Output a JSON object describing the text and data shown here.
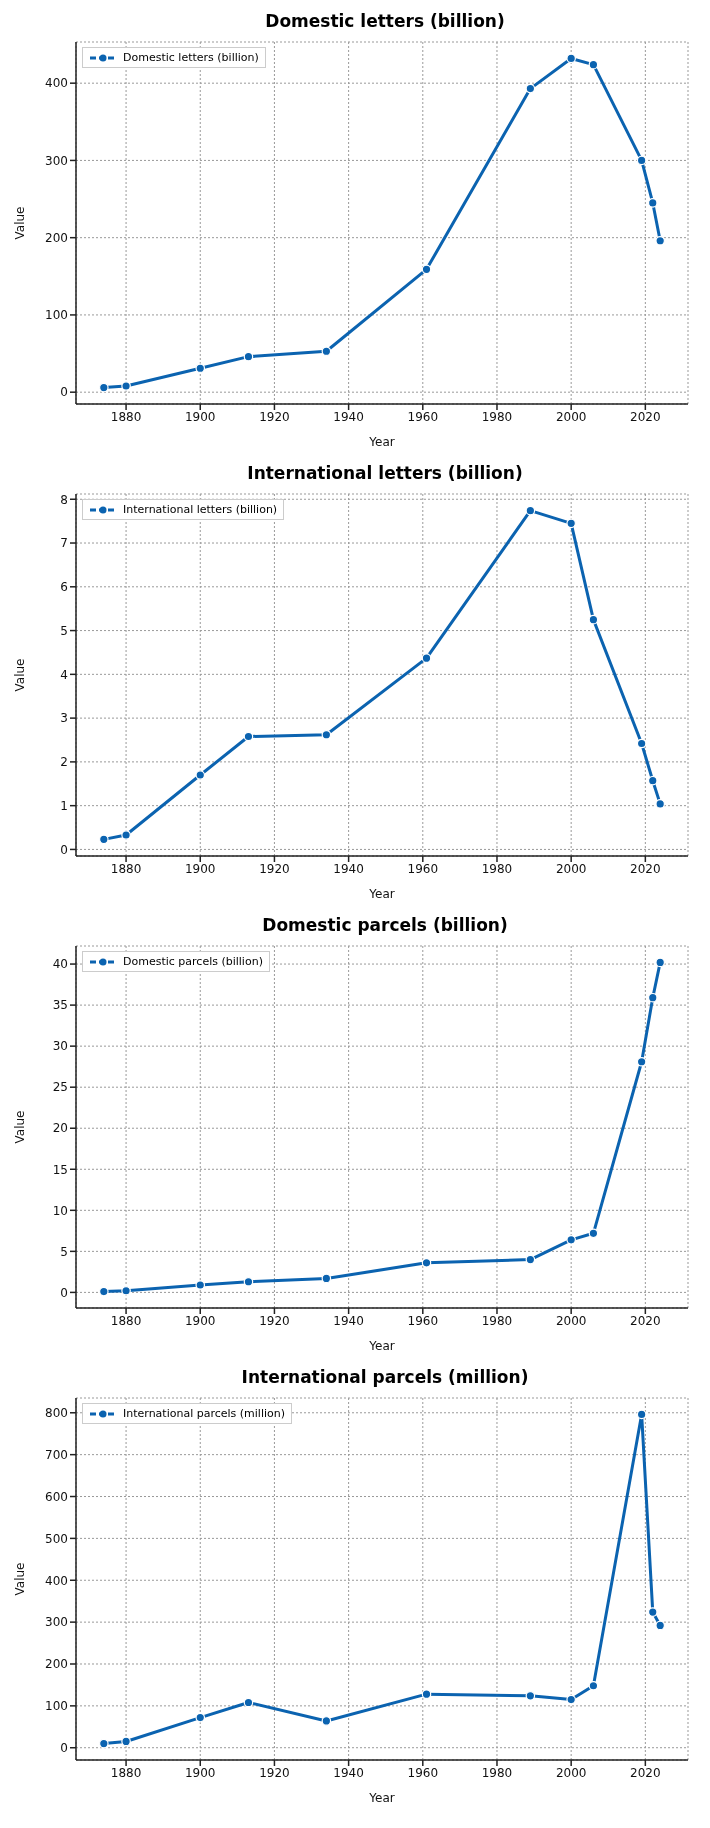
{
  "chart_data": [
    {
      "type": "line",
      "title": "Domestic letters (billion)",
      "xlabel": "Year",
      "ylabel": "Value",
      "x": [
        1874,
        1880,
        1900,
        1913,
        1934,
        1961,
        1989,
        2000,
        2006,
        2019,
        2022,
        2024
      ],
      "series": [
        {
          "name": "Domestic letters (billion)",
          "color": "#0b63b0",
          "values": [
            6,
            8,
            31,
            46,
            53,
            159,
            393,
            432,
            424,
            300,
            245,
            196
          ]
        }
      ],
      "xlim": [
        1866.5,
        2031.5
      ],
      "xticks": [
        1880,
        1900,
        1920,
        1940,
        1960,
        1980,
        2000,
        2020
      ],
      "ylim": [
        -15.3,
        453.3
      ],
      "yticks": [
        0,
        100,
        200,
        300,
        400
      ],
      "grid": true,
      "legend": "top left",
      "marker": "circle",
      "line_style": "solid"
    },
    {
      "type": "line",
      "title": "International letters (billion)",
      "xlabel": "Year",
      "ylabel": "Value",
      "x": [
        1874,
        1880,
        1900,
        1913,
        1934,
        1961,
        1989,
        2000,
        2006,
        2019,
        2022,
        2024
      ],
      "series": [
        {
          "name": "International letters (billion)",
          "color": "#0b63b0",
          "values": [
            0.23,
            0.33,
            1.7,
            2.58,
            2.62,
            4.37,
            7.74,
            7.45,
            5.25,
            2.42,
            1.57,
            1.04
          ]
        }
      ],
      "xlim": [
        1866.5,
        2031.5
      ],
      "xticks": [
        1880,
        1900,
        1920,
        1940,
        1960,
        1980,
        2000,
        2020
      ],
      "ylim": [
        -0.15,
        8.12
      ],
      "yticks": [
        0,
        1,
        2,
        3,
        4,
        5,
        6,
        7,
        8
      ],
      "grid": true,
      "legend": "top left",
      "marker": "circle",
      "line_style": "solid"
    },
    {
      "type": "line",
      "title": "Domestic parcels (billion)",
      "xlabel": "Year",
      "ylabel": "Value",
      "x": [
        1874,
        1880,
        1900,
        1913,
        1934,
        1961,
        1989,
        2000,
        2006,
        2019,
        2022,
        2024
      ],
      "series": [
        {
          "name": "Domestic parcels (billion)",
          "color": "#0b63b0",
          "values": [
            0.1,
            0.2,
            0.9,
            1.3,
            1.7,
            3.6,
            4.0,
            6.4,
            7.2,
            28.1,
            35.9,
            40.2
          ]
        }
      ],
      "xlim": [
        1866.5,
        2031.5
      ],
      "xticks": [
        1880,
        1900,
        1920,
        1940,
        1960,
        1980,
        2000,
        2020
      ],
      "ylim": [
        -1.9,
        42.2
      ],
      "yticks": [
        0,
        5,
        10,
        15,
        20,
        25,
        30,
        35,
        40
      ],
      "grid": true,
      "legend": "top left",
      "marker": "circle",
      "line_style": "solid"
    },
    {
      "type": "line",
      "title": "International parcels (million)",
      "xlabel": "Year",
      "ylabel": "Value",
      "x": [
        1874,
        1880,
        1900,
        1913,
        1934,
        1961,
        1989,
        2000,
        2006,
        2019,
        2022,
        2024
      ],
      "series": [
        {
          "name": "International parcels (million)",
          "color": "#0b63b0",
          "values": [
            10,
            15,
            72,
            108,
            64,
            128,
            124,
            115,
            148,
            796,
            324,
            292
          ]
        }
      ],
      "xlim": [
        1866.5,
        2031.5
      ],
      "xticks": [
        1880,
        1900,
        1920,
        1940,
        1960,
        1980,
        2000,
        2020
      ],
      "ylim": [
        -29.3,
        835.3
      ],
      "yticks": [
        0,
        100,
        200,
        300,
        400,
        500,
        600,
        700,
        800
      ],
      "grid": true,
      "legend": "top left",
      "marker": "circle",
      "line_style": "solid"
    }
  ]
}
